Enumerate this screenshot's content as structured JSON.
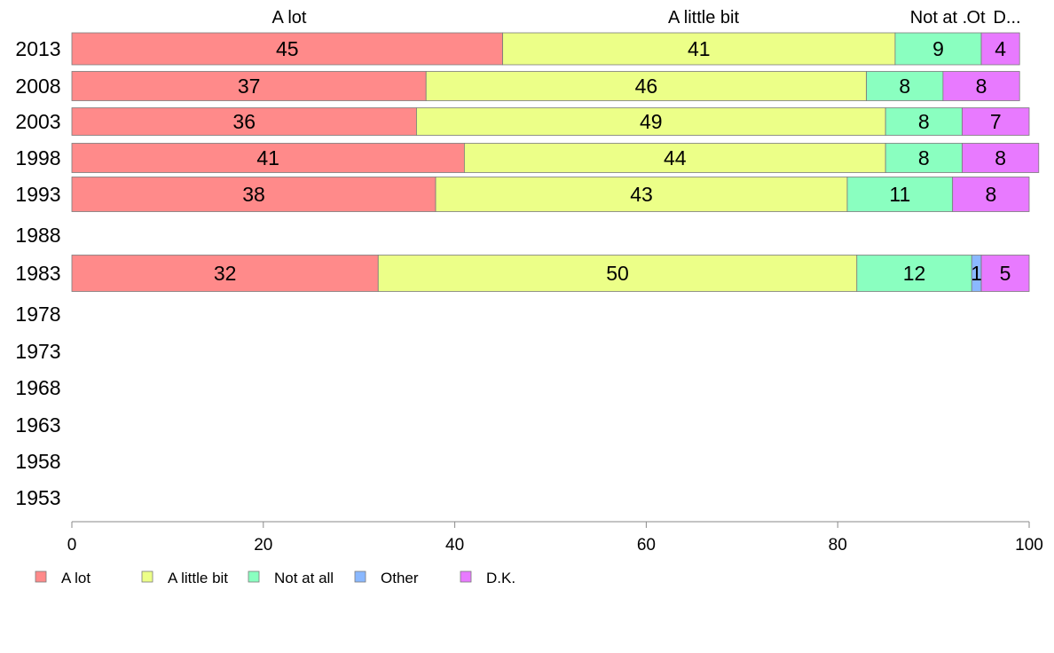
{
  "chart_data": {
    "type": "bar",
    "orientation": "horizontal",
    "stacked": true,
    "categories": [
      "2013",
      "2008",
      "2003",
      "1998",
      "1993",
      "1988",
      "1983",
      "1978",
      "1973",
      "1968",
      "1963",
      "1958",
      "1953"
    ],
    "series": [
      {
        "name": "A lot",
        "color": "#ff8a8a",
        "values": [
          45,
          37,
          36,
          41,
          38,
          null,
          32,
          null,
          null,
          null,
          null,
          null,
          null
        ]
      },
      {
        "name": "A little bit",
        "color": "#ecff88",
        "values": [
          41,
          46,
          49,
          44,
          43,
          null,
          50,
          null,
          null,
          null,
          null,
          null,
          null
        ]
      },
      {
        "name": "Not at all",
        "color": "#8affc0",
        "values": [
          9,
          8,
          8,
          8,
          11,
          null,
          12,
          null,
          null,
          null,
          null,
          null,
          null
        ]
      },
      {
        "name": "Other",
        "color": "#8ab8ff",
        "values": [
          0,
          0,
          0,
          0,
          0,
          null,
          1,
          null,
          null,
          null,
          null,
          null,
          null
        ]
      },
      {
        "name": "D.K.",
        "color": "#e87aff",
        "values": [
          4,
          8,
          7,
          8,
          8,
          null,
          5,
          null,
          null,
          null,
          null,
          null,
          null
        ]
      }
    ],
    "column_headers": [
      "A lot",
      "A little bit",
      "Not at .",
      "Ot",
      "D..."
    ],
    "xlim": [
      0,
      100
    ],
    "xticks": [
      0,
      20,
      40,
      60,
      80,
      100
    ],
    "legend_position": "bottom-left",
    "grid": false
  }
}
